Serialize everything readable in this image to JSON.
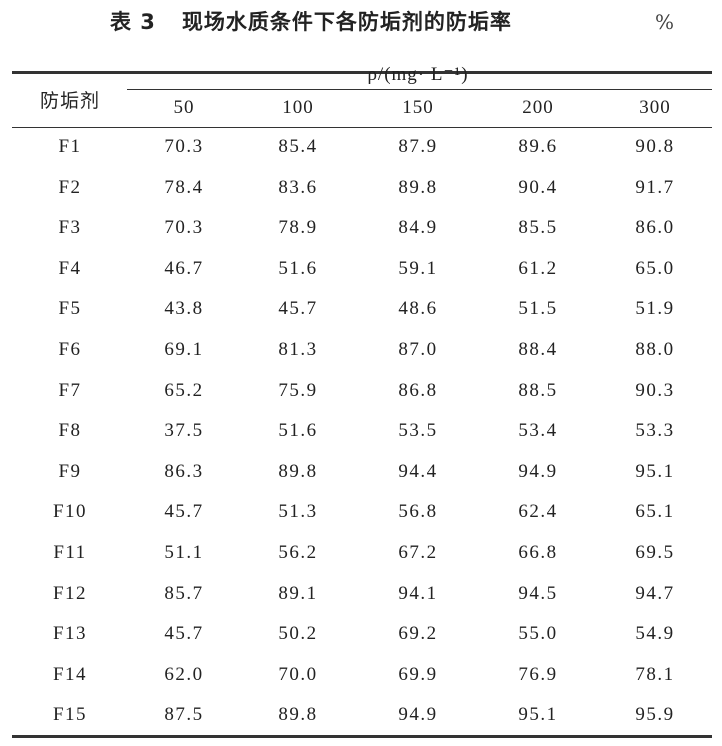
{
  "table": {
    "title_number": "表 3",
    "title_text": "现场水质条件下各防垢剂的防垢率",
    "unit": "%",
    "row_header": "防垢剂",
    "group_header": "ρ/(mg· L⁻¹)",
    "columns": [
      "50",
      "100",
      "150",
      "200",
      "300"
    ],
    "rows": [
      {
        "label": "F1",
        "values": [
          "70.3",
          "85.4",
          "87.9",
          "89.6",
          "90.8"
        ]
      },
      {
        "label": "F2",
        "values": [
          "78.4",
          "83.6",
          "89.8",
          "90.4",
          "91.7"
        ]
      },
      {
        "label": "F3",
        "values": [
          "70.3",
          "78.9",
          "84.9",
          "85.5",
          "86.0"
        ]
      },
      {
        "label": "F4",
        "values": [
          "46.7",
          "51.6",
          "59.1",
          "61.2",
          "65.0"
        ]
      },
      {
        "label": "F5",
        "values": [
          "43.8",
          "45.7",
          "48.6",
          "51.5",
          "51.9"
        ]
      },
      {
        "label": "F6",
        "values": [
          "69.1",
          "81.3",
          "87.0",
          "88.4",
          "88.0"
        ]
      },
      {
        "label": "F7",
        "values": [
          "65.2",
          "75.9",
          "86.8",
          "88.5",
          "90.3"
        ]
      },
      {
        "label": "F8",
        "values": [
          "37.5",
          "51.6",
          "53.5",
          "53.4",
          "53.3"
        ]
      },
      {
        "label": "F9",
        "values": [
          "86.3",
          "89.8",
          "94.4",
          "94.9",
          "95.1"
        ]
      },
      {
        "label": "F10",
        "values": [
          "45.7",
          "51.3",
          "56.8",
          "62.4",
          "65.1"
        ]
      },
      {
        "label": "F11",
        "values": [
          "51.1",
          "56.2",
          "67.2",
          "66.8",
          "69.5"
        ]
      },
      {
        "label": "F12",
        "values": [
          "85.7",
          "89.1",
          "94.1",
          "94.5",
          "94.7"
        ]
      },
      {
        "label": "F13",
        "values": [
          "45.7",
          "50.2",
          "69.2",
          "55.0",
          "54.9"
        ]
      },
      {
        "label": "F14",
        "values": [
          "62.0",
          "70.0",
          "69.9",
          "76.9",
          "78.1"
        ]
      },
      {
        "label": "F15",
        "values": [
          "87.5",
          "89.8",
          "94.9",
          "95.1",
          "95.9"
        ]
      }
    ]
  }
}
